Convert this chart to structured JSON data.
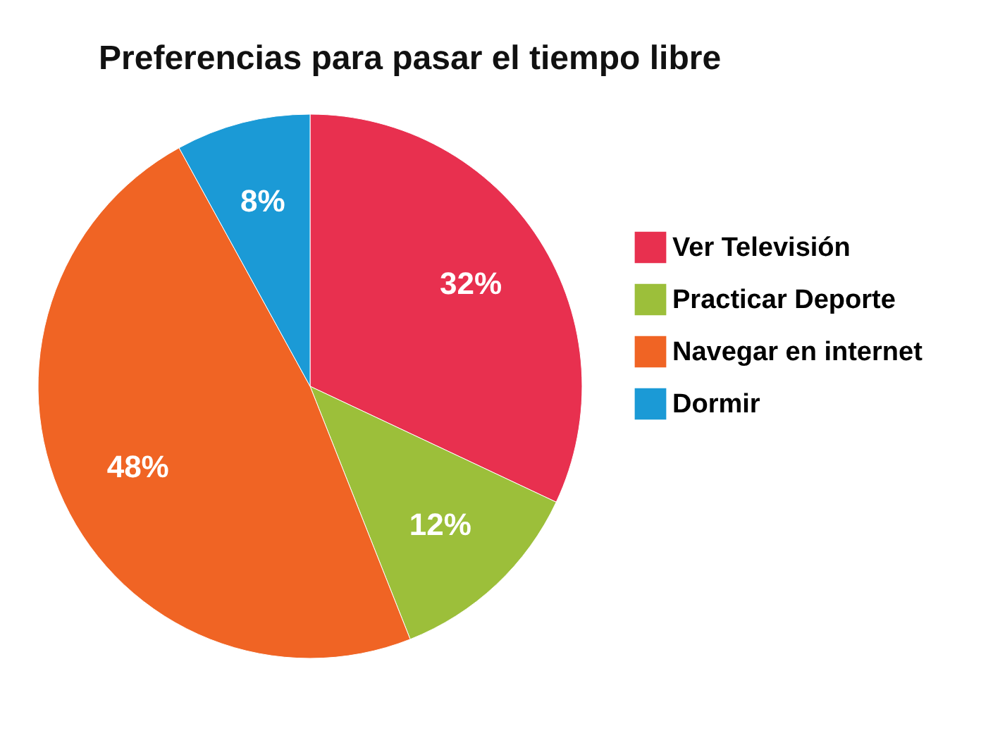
{
  "chart_data": {
    "type": "pie",
    "title": "Preferencias para pasar el tiempo libre",
    "categories": [
      "Ver Televisión",
      "Practicar Deporte",
      "Navegar en internet",
      "Dormir"
    ],
    "values": [
      32,
      12,
      48,
      8
    ],
    "colors": [
      "#e8304f",
      "#9cbf3a",
      "#f06424",
      "#1b9ad6"
    ],
    "value_labels": [
      "32%",
      "12%",
      "48%",
      "8%"
    ],
    "legend": "top right"
  }
}
